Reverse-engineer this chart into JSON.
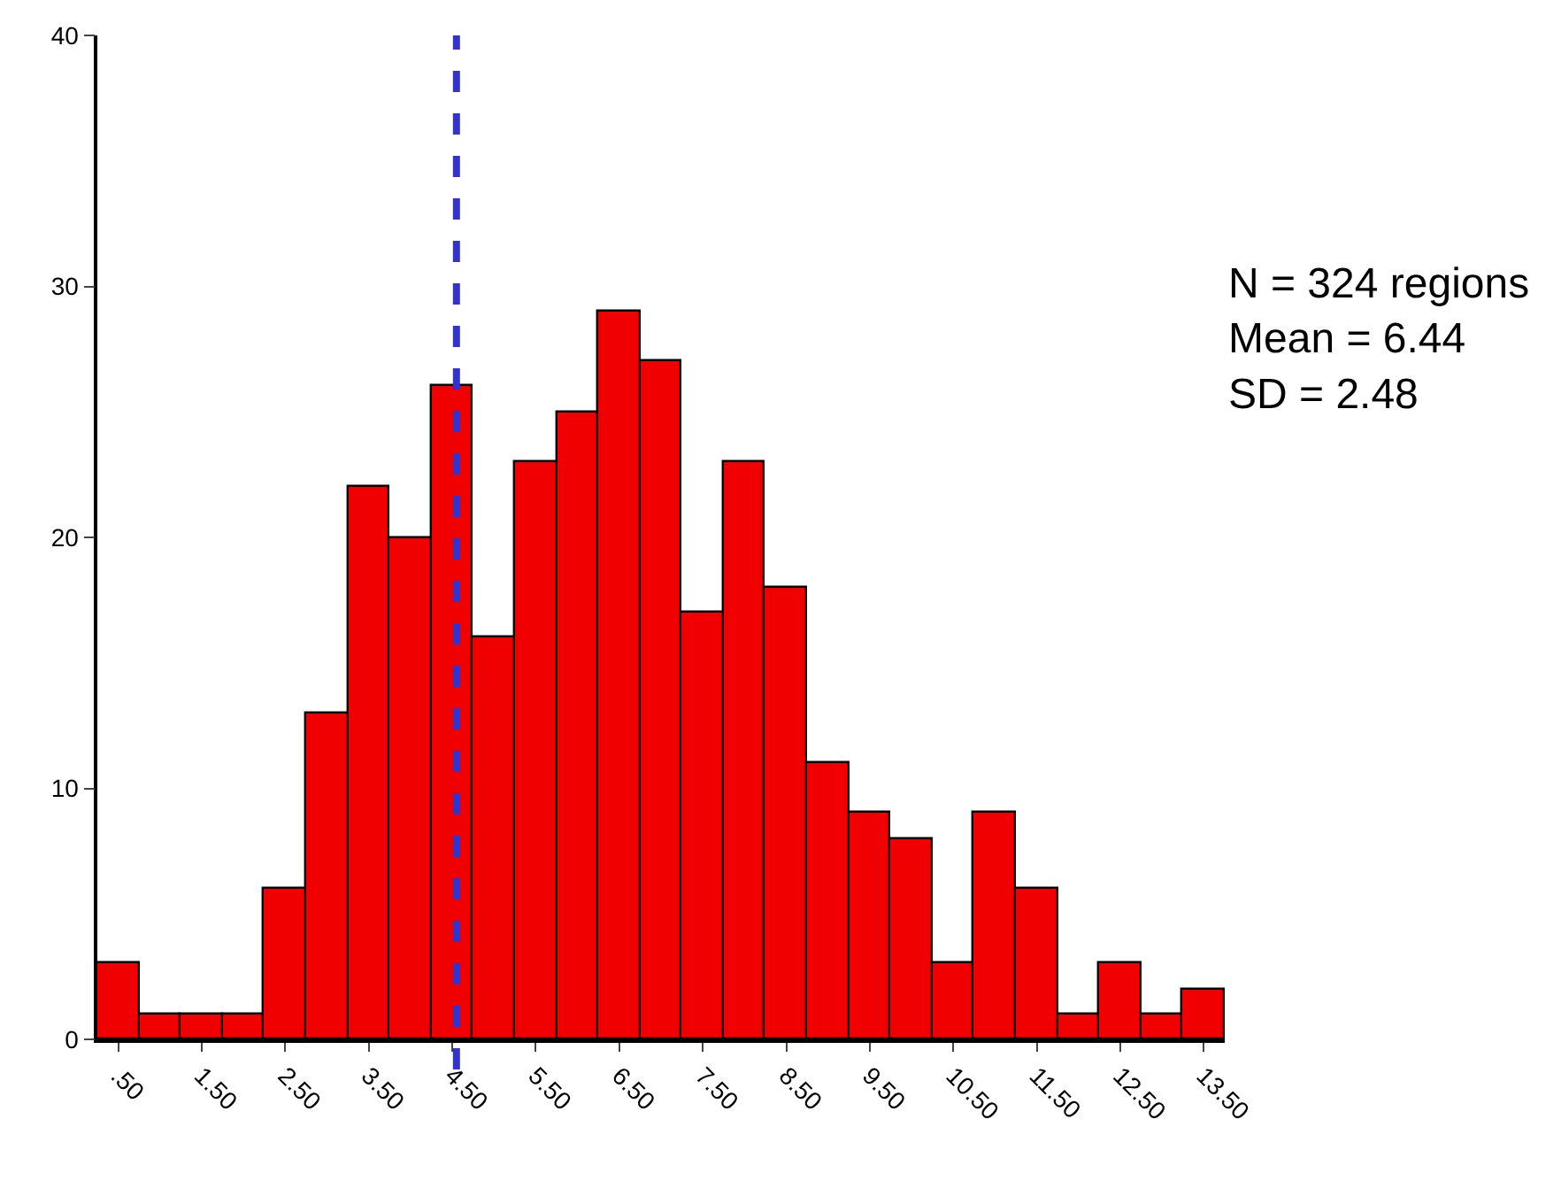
{
  "chart_data": {
    "type": "histogram",
    "bins": [
      0.25,
      0.75,
      1.25,
      1.75,
      2.25,
      2.75,
      3.25,
      3.75,
      4.25,
      4.75,
      5.25,
      5.75,
      6.25,
      6.75,
      7.25,
      7.75,
      8.25,
      8.75,
      9.25,
      9.75,
      10.25,
      10.75,
      11.25,
      11.75,
      12.25,
      12.75,
      13.25,
      13.75
    ],
    "values": [
      3,
      1,
      1,
      1,
      6,
      13,
      22,
      20,
      26,
      16,
      23,
      25,
      29,
      27,
      17,
      23,
      18,
      11,
      9,
      8,
      3,
      9,
      6,
      1,
      3,
      1,
      2
    ],
    "color": "#f00000",
    "xlim": [
      0.25,
      13.75
    ],
    "xticks": [
      {
        "value": 0.5,
        "label": ".50"
      },
      {
        "value": 1.5,
        "label": "1.50"
      },
      {
        "value": 2.5,
        "label": "2.50"
      },
      {
        "value": 3.5,
        "label": "3.50"
      },
      {
        "value": 4.5,
        "label": "4.50"
      },
      {
        "value": 5.5,
        "label": "5.50"
      },
      {
        "value": 6.5,
        "label": "6.50"
      },
      {
        "value": 7.5,
        "label": "7.50"
      },
      {
        "value": 8.5,
        "label": "8.50"
      },
      {
        "value": 9.5,
        "label": "9.50"
      },
      {
        "value": 10.5,
        "label": "10.50"
      },
      {
        "value": 11.5,
        "label": "11.50"
      },
      {
        "value": 12.5,
        "label": "12.50"
      },
      {
        "value": 13.5,
        "label": "13.50"
      }
    ],
    "ylim": [
      0,
      40
    ],
    "yticks": [
      0,
      10,
      20,
      30,
      40
    ],
    "ref_lines": [
      {
        "axis": "x",
        "value": 4.55,
        "color": "#3333cc",
        "line_style": "dashed"
      }
    ],
    "annotations": [
      "N = 324 regions\nMean = 6.44\nSD = 2.48"
    ]
  }
}
